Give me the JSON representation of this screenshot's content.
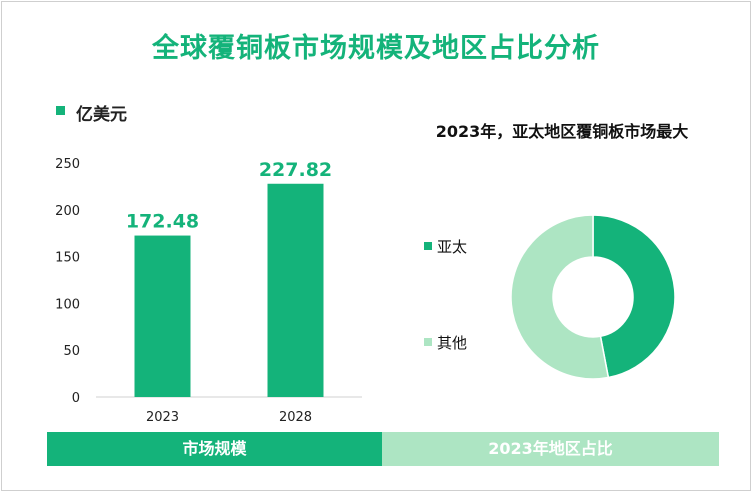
{
  "title": "全球覆铜板市场规模及地区占比分析",
  "unit_label": "亿美元",
  "colors": {
    "accent": "#14b37a",
    "light": "#ade5c3"
  },
  "chart_data": [
    {
      "type": "bar",
      "title": "",
      "categories": [
        "2023",
        "2028"
      ],
      "values": [
        172.48,
        227.82
      ],
      "data_labels": [
        "172.48",
        "227.82"
      ],
      "y_ticks": [
        0,
        50,
        100,
        150,
        200,
        250
      ],
      "ylim": [
        0,
        250
      ],
      "ylabel": "亿美元",
      "grid": false
    },
    {
      "type": "pie",
      "title": "2023年，亚太地区覆铜板市场最大",
      "donut": true,
      "slices": [
        {
          "name": "亚太",
          "value": 47
        },
        {
          "name": "其他",
          "value": 53
        }
      ],
      "legend_position": "left"
    }
  ],
  "footer": {
    "left_label": "市场规模",
    "right_label": "2023年地区占比"
  }
}
